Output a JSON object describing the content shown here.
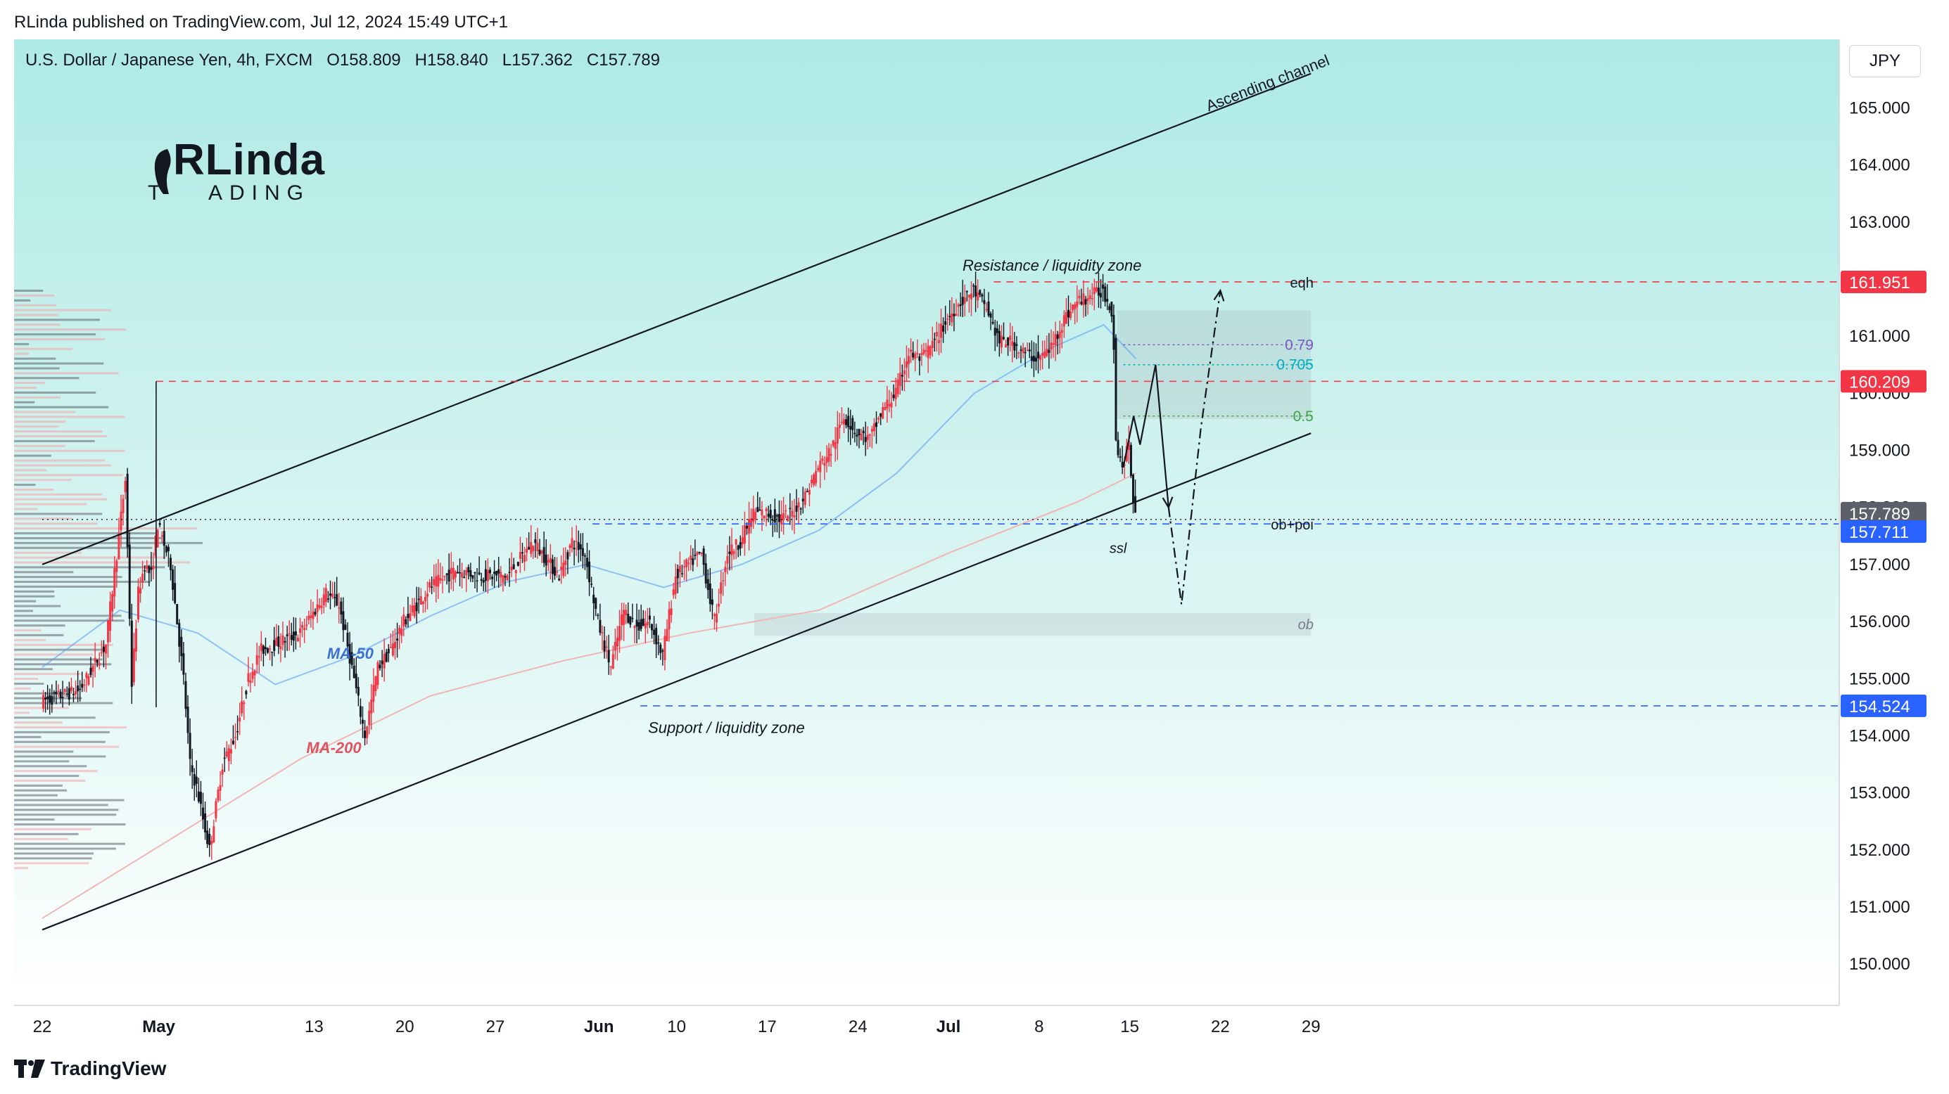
{
  "header": {
    "publisher_line": "RLinda published on TradingView.com, Jul 12, 2024 15:49 UTC+1"
  },
  "legend": {
    "symbol": "U.S. Dollar / Japanese Yen, 4h, FXCM",
    "open": "O158.809",
    "high": "H158.840",
    "low": "L157.362",
    "close": "C157.789"
  },
  "brand": {
    "logo_top": "RLinda",
    "logo_bottom": "ADING",
    "logo_prefix": "T"
  },
  "footer": {
    "tradingview_label": "TradingView"
  },
  "currency_button": {
    "label": "JPY"
  },
  "annotations": {
    "ascending_channel": "Ascending channel",
    "resistance": "Resistance / liquidity zone",
    "support": "Support / liquidity zone",
    "ma50": "MA-50",
    "ma200": "MA-200",
    "eqh": "eqh",
    "ssl": "ssl",
    "ob": "ob",
    "ob_poi": "ob+poi",
    "fib_079": "0.79",
    "fib_0705": "0.705",
    "fib_05": "0.5"
  },
  "price_tags": [
    {
      "label": "161.951",
      "color": "#f23645"
    },
    {
      "label": "160.209",
      "color": "#f23645"
    },
    {
      "label": "157.789",
      "color": "#5d606b"
    },
    {
      "label": "157.711",
      "color": "#2962ff"
    },
    {
      "label": "154.524",
      "color": "#2962ff"
    }
  ],
  "colors": {
    "bull": "#f23645",
    "bear": "#131722",
    "ma50": "#5b9cf6",
    "ma200": "#f0b6b6",
    "bg_top": "#b2ebe6",
    "bg_bottom": "#ffffff"
  },
  "chart_data": {
    "type": "candlestick",
    "title": "U.S. Dollar / Japanese Yen, 4h, FXCM",
    "ylim": [
      149.3,
      166.2
    ],
    "y_ticks": [
      "150.000",
      "151.000",
      "152.000",
      "153.000",
      "154.000",
      "155.000",
      "156.000",
      "157.000",
      "158.000",
      "159.000",
      "160.000",
      "161.000",
      "162.000",
      "163.000",
      "164.000",
      "165.000"
    ],
    "x_ticks": [
      {
        "label": "22",
        "bold": false
      },
      {
        "label": "May",
        "bold": true
      },
      {
        "label": "13",
        "bold": false
      },
      {
        "label": "20",
        "bold": false
      },
      {
        "label": "27",
        "bold": false
      },
      {
        "label": "Jun",
        "bold": true
      },
      {
        "label": "10",
        "bold": false
      },
      {
        "label": "17",
        "bold": false
      },
      {
        "label": "24",
        "bold": false
      },
      {
        "label": "Jul",
        "bold": true
      },
      {
        "label": "8",
        "bold": false
      },
      {
        "label": "15",
        "bold": false
      },
      {
        "label": "22",
        "bold": false
      },
      {
        "label": "29",
        "bold": false
      }
    ],
    "x_tick_days": [
      0,
      9,
      21,
      28,
      35,
      43,
      49,
      56,
      63,
      70,
      77,
      84,
      91,
      98
    ],
    "days_per_candle": 0.1667,
    "price_path": [
      [
        0,
        154.6
      ],
      [
        3,
        154.8
      ],
      [
        5,
        155.6
      ],
      [
        6,
        157.5
      ],
      [
        6.5,
        158.5
      ],
      [
        7,
        154.9
      ],
      [
        7.5,
        156.5
      ],
      [
        8,
        157.0
      ],
      [
        8.5,
        156.8
      ],
      [
        9,
        157.7
      ],
      [
        10,
        157.0
      ],
      [
        11,
        155.0
      ],
      [
        11.5,
        153.5
      ],
      [
        12,
        153.1
      ],
      [
        13,
        152.0
      ],
      [
        14,
        153.5
      ],
      [
        15,
        154.0
      ],
      [
        16,
        155.0
      ],
      [
        17,
        155.5
      ],
      [
        18,
        155.6
      ],
      [
        20,
        155.8
      ],
      [
        22,
        156.5
      ],
      [
        23,
        156.3
      ],
      [
        24,
        155.2
      ],
      [
        25,
        154.0
      ],
      [
        26,
        155.2
      ],
      [
        27,
        155.5
      ],
      [
        28,
        156.0
      ],
      [
        29,
        156.3
      ],
      [
        30,
        156.6
      ],
      [
        32,
        156.9
      ],
      [
        34,
        156.8
      ],
      [
        36,
        156.8
      ],
      [
        38,
        157.4
      ],
      [
        39,
        157.1
      ],
      [
        40,
        156.8
      ],
      [
        41,
        157.4
      ],
      [
        42,
        157.2
      ],
      [
        43,
        156.0
      ],
      [
        44,
        155.2
      ],
      [
        45,
        156.2
      ],
      [
        46,
        155.9
      ],
      [
        47,
        156.0
      ],
      [
        48,
        155.4
      ],
      [
        49,
        156.8
      ],
      [
        50,
        157.0
      ],
      [
        51,
        157.2
      ],
      [
        52,
        156.0
      ],
      [
        53,
        157.2
      ],
      [
        54,
        157.4
      ],
      [
        55,
        157.9
      ],
      [
        56,
        157.9
      ],
      [
        57,
        157.8
      ],
      [
        58,
        157.9
      ],
      [
        59,
        158.2
      ],
      [
        60,
        158.7
      ],
      [
        61,
        159.0
      ],
      [
        62,
        159.6
      ],
      [
        63,
        159.3
      ],
      [
        64,
        159.2
      ],
      [
        65,
        159.7
      ],
      [
        66,
        160.0
      ],
      [
        67,
        160.7
      ],
      [
        68,
        160.6
      ],
      [
        69,
        160.9
      ],
      [
        70,
        161.3
      ],
      [
        71,
        161.6
      ],
      [
        72,
        161.8
      ],
      [
        73,
        161.5
      ],
      [
        74,
        160.9
      ],
      [
        75,
        160.9
      ],
      [
        76,
        160.7
      ],
      [
        77,
        160.6
      ],
      [
        78,
        160.8
      ],
      [
        79,
        161.3
      ],
      [
        80,
        161.6
      ],
      [
        81,
        161.7
      ],
      [
        82,
        161.8
      ],
      [
        82.8,
        161.4
      ],
      [
        83,
        159.2
      ],
      [
        83.5,
        158.7
      ],
      [
        84,
        159.1
      ],
      [
        84.5,
        157.8
      ]
    ],
    "ma50": [
      [
        0,
        155.2
      ],
      [
        6,
        156.2
      ],
      [
        12,
        155.8
      ],
      [
        18,
        154.9
      ],
      [
        24,
        155.4
      ],
      [
        30,
        156.1
      ],
      [
        36,
        156.7
      ],
      [
        42,
        157.0
      ],
      [
        48,
        156.6
      ],
      [
        54,
        157.0
      ],
      [
        60,
        157.6
      ],
      [
        66,
        158.6
      ],
      [
        72,
        160.0
      ],
      [
        78,
        160.8
      ],
      [
        82,
        161.2
      ],
      [
        84.5,
        160.6
      ]
    ],
    "ma200": [
      [
        0,
        150.8
      ],
      [
        10,
        152.2
      ],
      [
        20,
        153.6
      ],
      [
        30,
        154.7
      ],
      [
        40,
        155.3
      ],
      [
        50,
        155.8
      ],
      [
        60,
        156.2
      ],
      [
        70,
        157.2
      ],
      [
        80,
        158.1
      ],
      [
        84.5,
        158.6
      ]
    ],
    "channel_upper": [
      [
        0,
        157.0
      ],
      [
        98,
        165.6
      ]
    ],
    "channel_lower": [
      [
        0,
        150.6
      ],
      [
        98,
        159.3
      ]
    ],
    "levels": [
      {
        "name": "resistance",
        "value": 161.951,
        "x_from": 73.5
      },
      {
        "name": "level_160209",
        "value": 160.209,
        "x_from": 8.8
      },
      {
        "name": "support",
        "value": 154.524,
        "x_from": 46.2
      },
      {
        "name": "ssl",
        "value": 157.711,
        "x_from": 42.5
      },
      {
        "name": "last",
        "value": 157.789,
        "x_from": 0
      }
    ],
    "fib_levels": [
      {
        "label": "0.79",
        "value": 160.85
      },
      {
        "label": "0.705",
        "value": 160.5
      },
      {
        "label": "0.5",
        "value": 159.6
      }
    ],
    "zones": [
      {
        "name": "premium-zone",
        "x_from": 83,
        "x_to": 98,
        "y_from": 159.55,
        "y_to": 161.45
      },
      {
        "name": "ob-zone",
        "x_from": 55,
        "x_to": 98,
        "y_from": 155.75,
        "y_to": 156.15
      }
    ],
    "forecast_solid": [
      [
        83.5,
        158.7
      ],
      [
        84.3,
        159.6
      ],
      [
        84.8,
        159.1
      ],
      [
        86,
        160.5
      ],
      [
        87,
        158.0
      ]
    ],
    "forecast_dashed": [
      [
        87,
        158.0
      ],
      [
        88,
        156.3
      ],
      [
        89.5,
        159.4
      ],
      [
        91,
        161.8
      ]
    ]
  }
}
